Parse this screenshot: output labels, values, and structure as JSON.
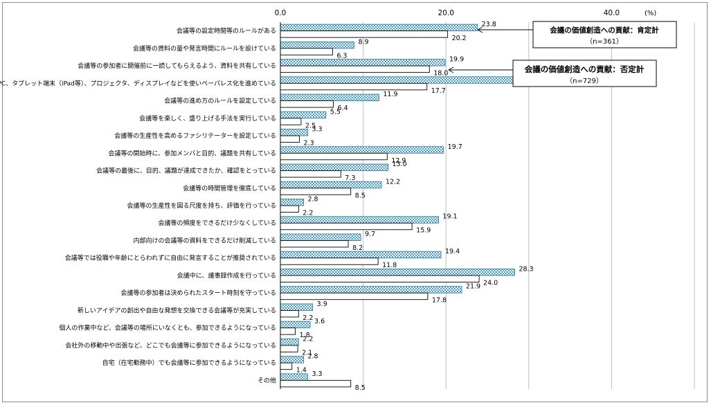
{
  "chart_data": {
    "type": "bar",
    "orientation": "horizontal",
    "unit": "(%)",
    "xlim": [
      0,
      50
    ],
    "ticks": [
      "0.0",
      "20.0",
      "40.0"
    ],
    "grid": true,
    "legend_placement": "top-right",
    "categories": [
      "会議等の設定時間等のルールがある",
      "会議等の資料の量や発言時間にルールを設けている",
      "会議等の参加者に開催前に一読してもらえるよう、資料を共有している",
      "PC、タブレット端末（iPad等）、プロジェクタ、ディスプレイなどを使いペーパレス化を進めている",
      "会議等の進め方のルールを設定している",
      "会議等を楽しく、盛り上げる手法を実行している",
      "会議等の生産性を高めるファシリテーターを設定している",
      "会議等の開始時に、参加メンバと目的、議題を共有している",
      "会議等の最後に、目的、議題が達成できたか、確認をとっている",
      "会議等の時間管理を徹底している",
      "会議等の生産性を図る尺度を持ち、評価を行っている",
      "会議等の頻度をできるだけ少なくしている",
      "内部向けの会議等の資料をできるだけ削減している",
      "会議等では役職や年齢にとらわれずに自由に発言することが推奨されている",
      "会議中に、議事録作成を行っている",
      "会議等の参加者は決められたスタート時刻を守っている",
      "新しいアイデアの創出や自由な発想を交換できる会議等が充実している",
      "個人の作業中など、会議等の場所にいなくとも、参加できるようになっている",
      "会社外の移動中や出張など、どこでも会議等に参加できるようになっている",
      "自宅（在宅勤務中）でも会議等に参加できるようになっている",
      "その他"
    ],
    "series": [
      {
        "name": "会議の価値創造への貢献：肯定計",
        "n_label": "（n=361）",
        "color": "#5aa8c8",
        "values": [
          23.8,
          8.9,
          19.9,
          28.8,
          11.9,
          5.5,
          3.3,
          19.7,
          13.0,
          12.2,
          2.8,
          19.1,
          9.7,
          19.4,
          28.3,
          21.9,
          3.9,
          3.6,
          2.2,
          2.8,
          3.3
        ],
        "labels": [
          "23.8",
          "8.9",
          "19.9",
          "28.8",
          "11.9",
          "5.5",
          "3.3",
          "19.7",
          "13.0",
          "12.2",
          "2.8",
          "19.1",
          "9.7",
          "19.4",
          "28.3",
          "21.9",
          "3.9",
          "3.6",
          "2.2",
          "2.8",
          "3.3"
        ]
      },
      {
        "name": "会議の価値創造への貢献：否定計",
        "n_label": "（n=729）",
        "color": "#ffffff",
        "values": [
          20.2,
          6.3,
          18.0,
          17.7,
          6.4,
          2.5,
          2.3,
          12.9,
          7.3,
          8.5,
          2.2,
          15.9,
          8.2,
          11.8,
          24.0,
          17.8,
          2.2,
          1.8,
          2.1,
          1.4,
          8.5
        ],
        "labels": [
          "20.2",
          "6.3",
          "18.0",
          "17.7",
          "6.4",
          "2.5",
          "2.3",
          "12.9",
          "7.3",
          "8.5",
          "2.2",
          "15.9",
          "8.2",
          "11.8",
          "24.0",
          "17.8",
          "2.2",
          "1.8",
          "2.1",
          "1.4",
          "8.5"
        ]
      }
    ]
  }
}
